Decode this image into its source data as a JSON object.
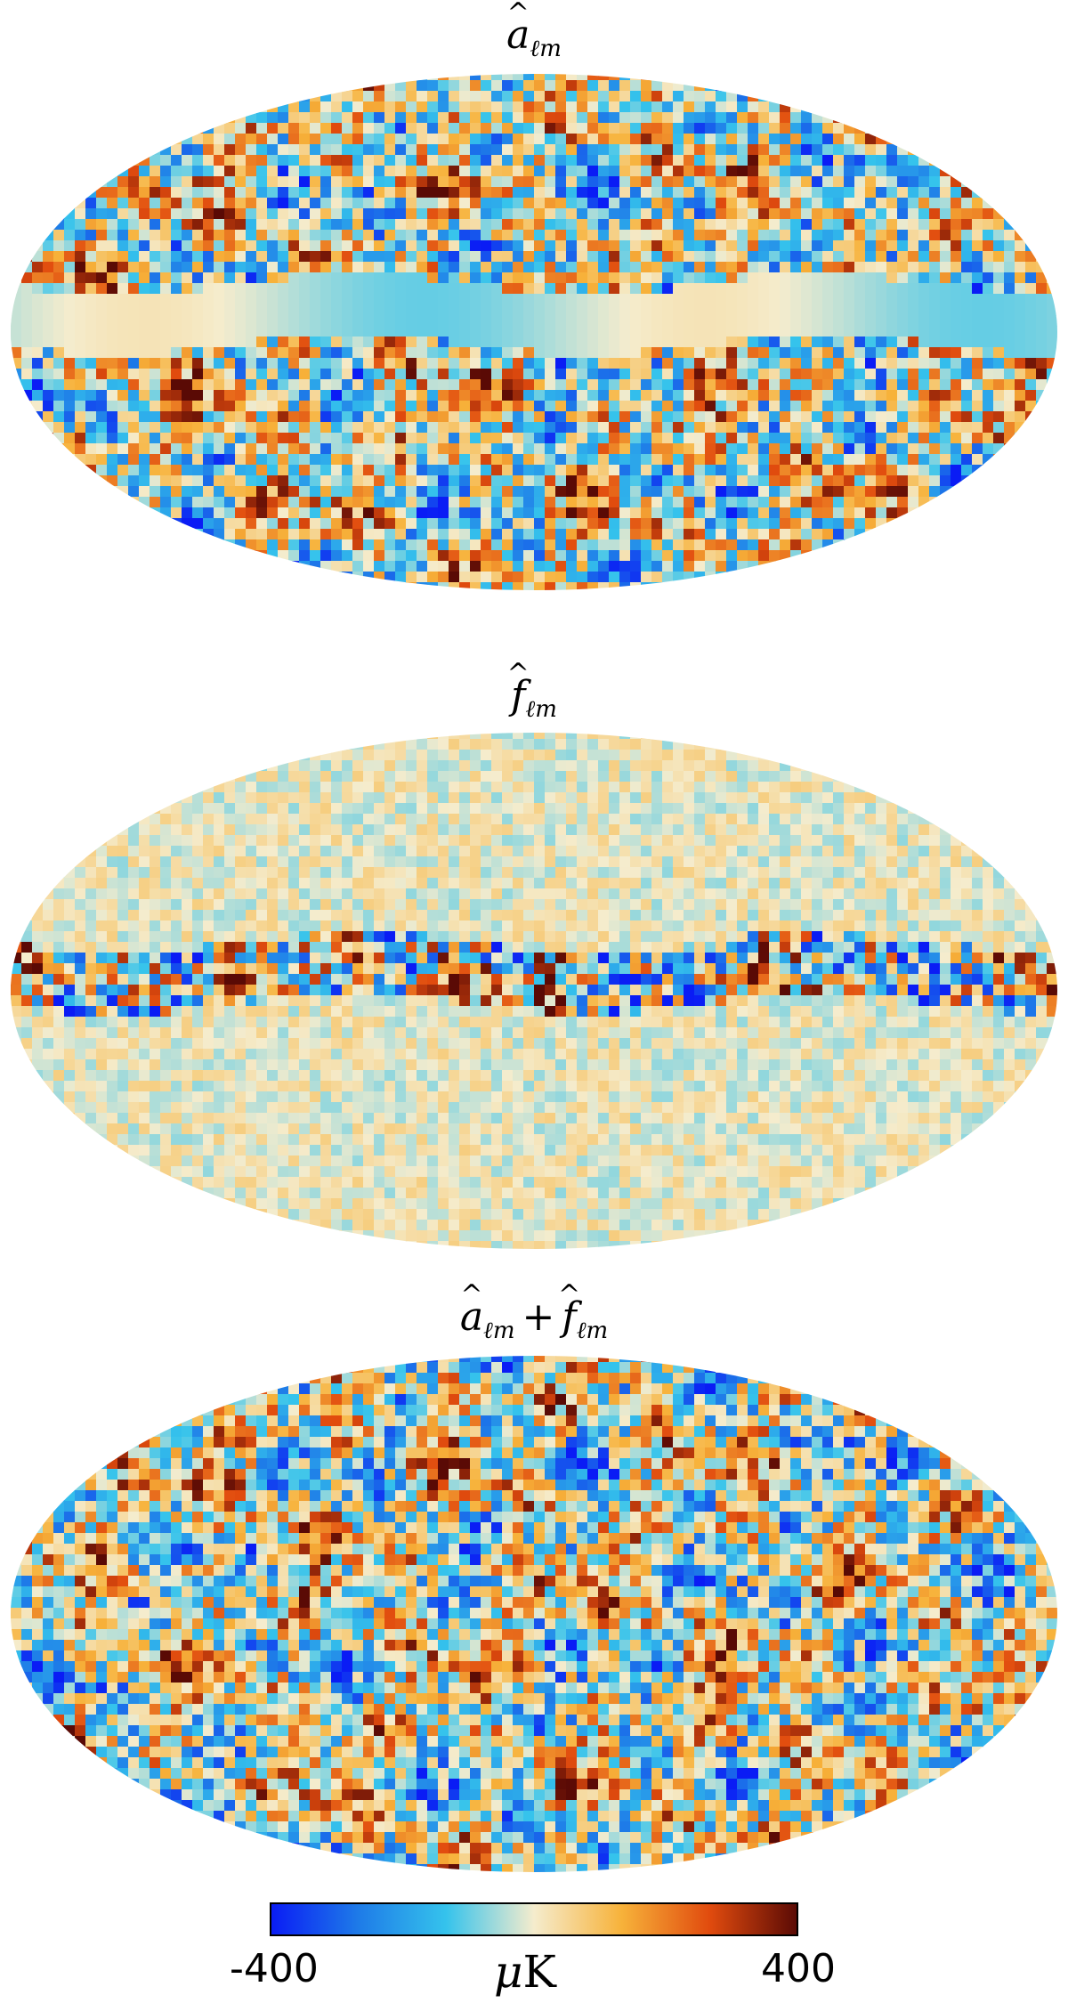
{
  "panels": [
    {
      "symbol_a": "a",
      "subscript_a": "ℓm",
      "operator": "",
      "symbol_b": "",
      "subscript_b": "",
      "style": "masked"
    },
    {
      "symbol_a": "f",
      "subscript_a": "ℓm",
      "operator": "",
      "symbol_b": "",
      "subscript_b": "",
      "style": "residual"
    },
    {
      "symbol_a": "a",
      "subscript_a": "ℓm",
      "operator": "+",
      "symbol_b": "f",
      "subscript_b": "ℓm",
      "style": "full"
    }
  ],
  "colorbar": {
    "min_label": "-400",
    "max_label": "400",
    "unit_mu": "μ",
    "unit_k": "K",
    "colors": [
      "#0a1cf5",
      "#1e7be8",
      "#35c3ec",
      "#f5eccd",
      "#f7b23a",
      "#e14b0e",
      "#5a0a05"
    ]
  }
}
